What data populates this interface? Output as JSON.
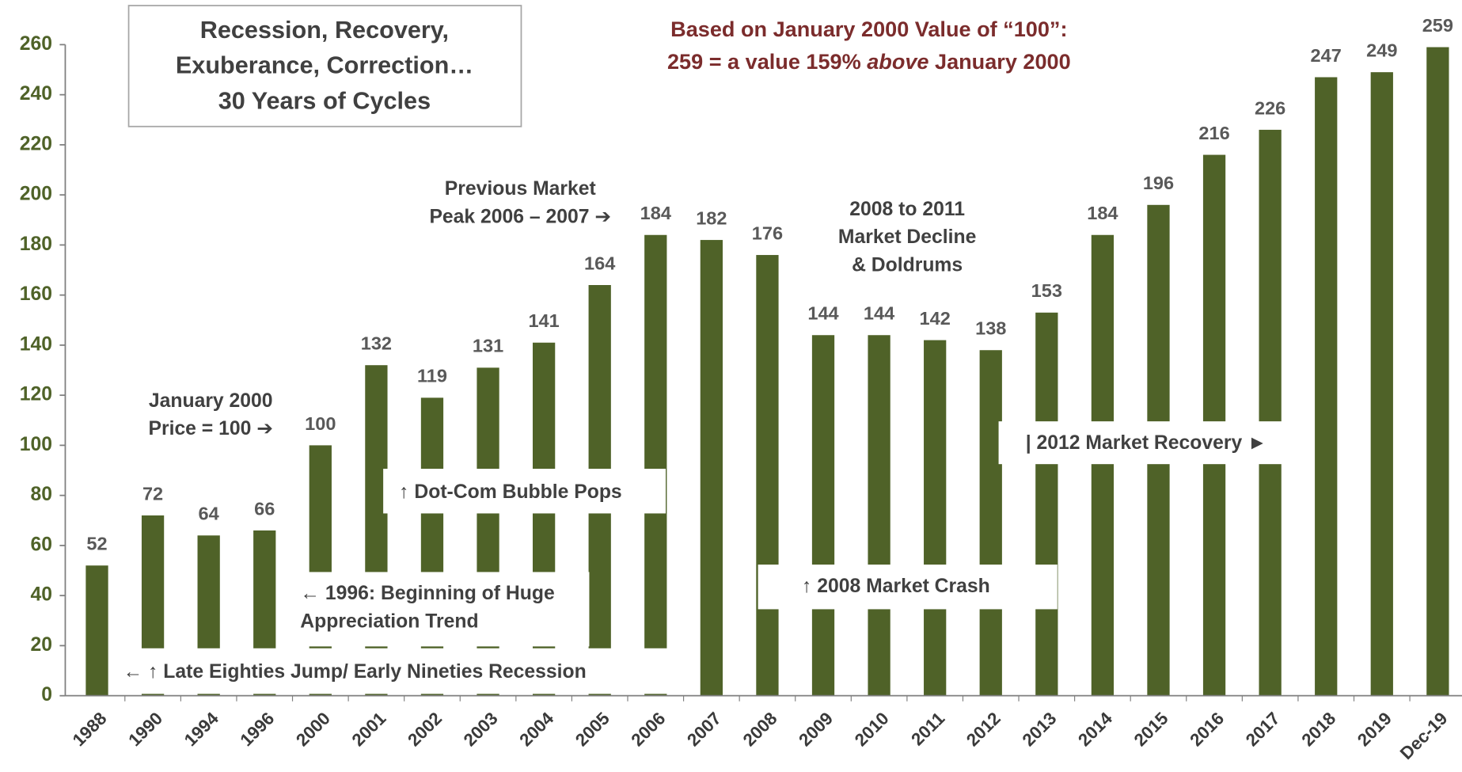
{
  "chart_data": {
    "type": "bar",
    "title": [
      "Recession, Recovery,",
      "Exuberance, Correction…",
      "30 Years of Cycles"
    ],
    "subtitle": {
      "line1": "Based on January 2000 Value of “100”:",
      "line2": [
        "259 = a value 159% ",
        "above",
        " January 2000"
      ]
    },
    "categories": [
      "1988",
      "1990",
      "1994",
      "1996",
      "2000",
      "2001",
      "2002",
      "2003",
      "2004",
      "2005",
      "2006",
      "2007",
      "2008",
      "2009",
      "2010",
      "2011",
      "2012",
      "2013",
      "2014",
      "2015",
      "2016",
      "2017",
      "2018",
      "2019",
      "Dec-19"
    ],
    "values": [
      52,
      72,
      64,
      66,
      100,
      132,
      119,
      131,
      141,
      164,
      184,
      182,
      176,
      144,
      144,
      142,
      138,
      153,
      184,
      196,
      216,
      226,
      247,
      249,
      259
    ],
    "color": "#4f6228",
    "ylim": [
      0,
      260
    ],
    "yticks": [
      0,
      20,
      40,
      60,
      80,
      100,
      120,
      140,
      160,
      180,
      200,
      220,
      240,
      260
    ],
    "annotations": [
      {
        "lines": [
          "← ↑ Late Eighties Jump/ Early Nineties Recession"
        ]
      },
      {
        "lines": [
          "← 1996: Beginning of Huge",
          "Appreciation Trend"
        ]
      },
      {
        "lines": [
          "↑ Dot-Com Bubble Pops"
        ]
      },
      {
        "lines": [
          "↑ 2008 Market Crash"
        ]
      },
      {
        "lines": [
          "| 2012 Market Recovery ►"
        ]
      },
      {
        "lines": [
          "January 2000",
          "Price = 100 ➔"
        ]
      },
      {
        "lines": [
          "Previous Market",
          "Peak 2006 – 2007 ➔"
        ]
      },
      {
        "lines": [
          "2008 to 2011",
          "Market Decline",
          "& Doldrums"
        ]
      }
    ]
  }
}
